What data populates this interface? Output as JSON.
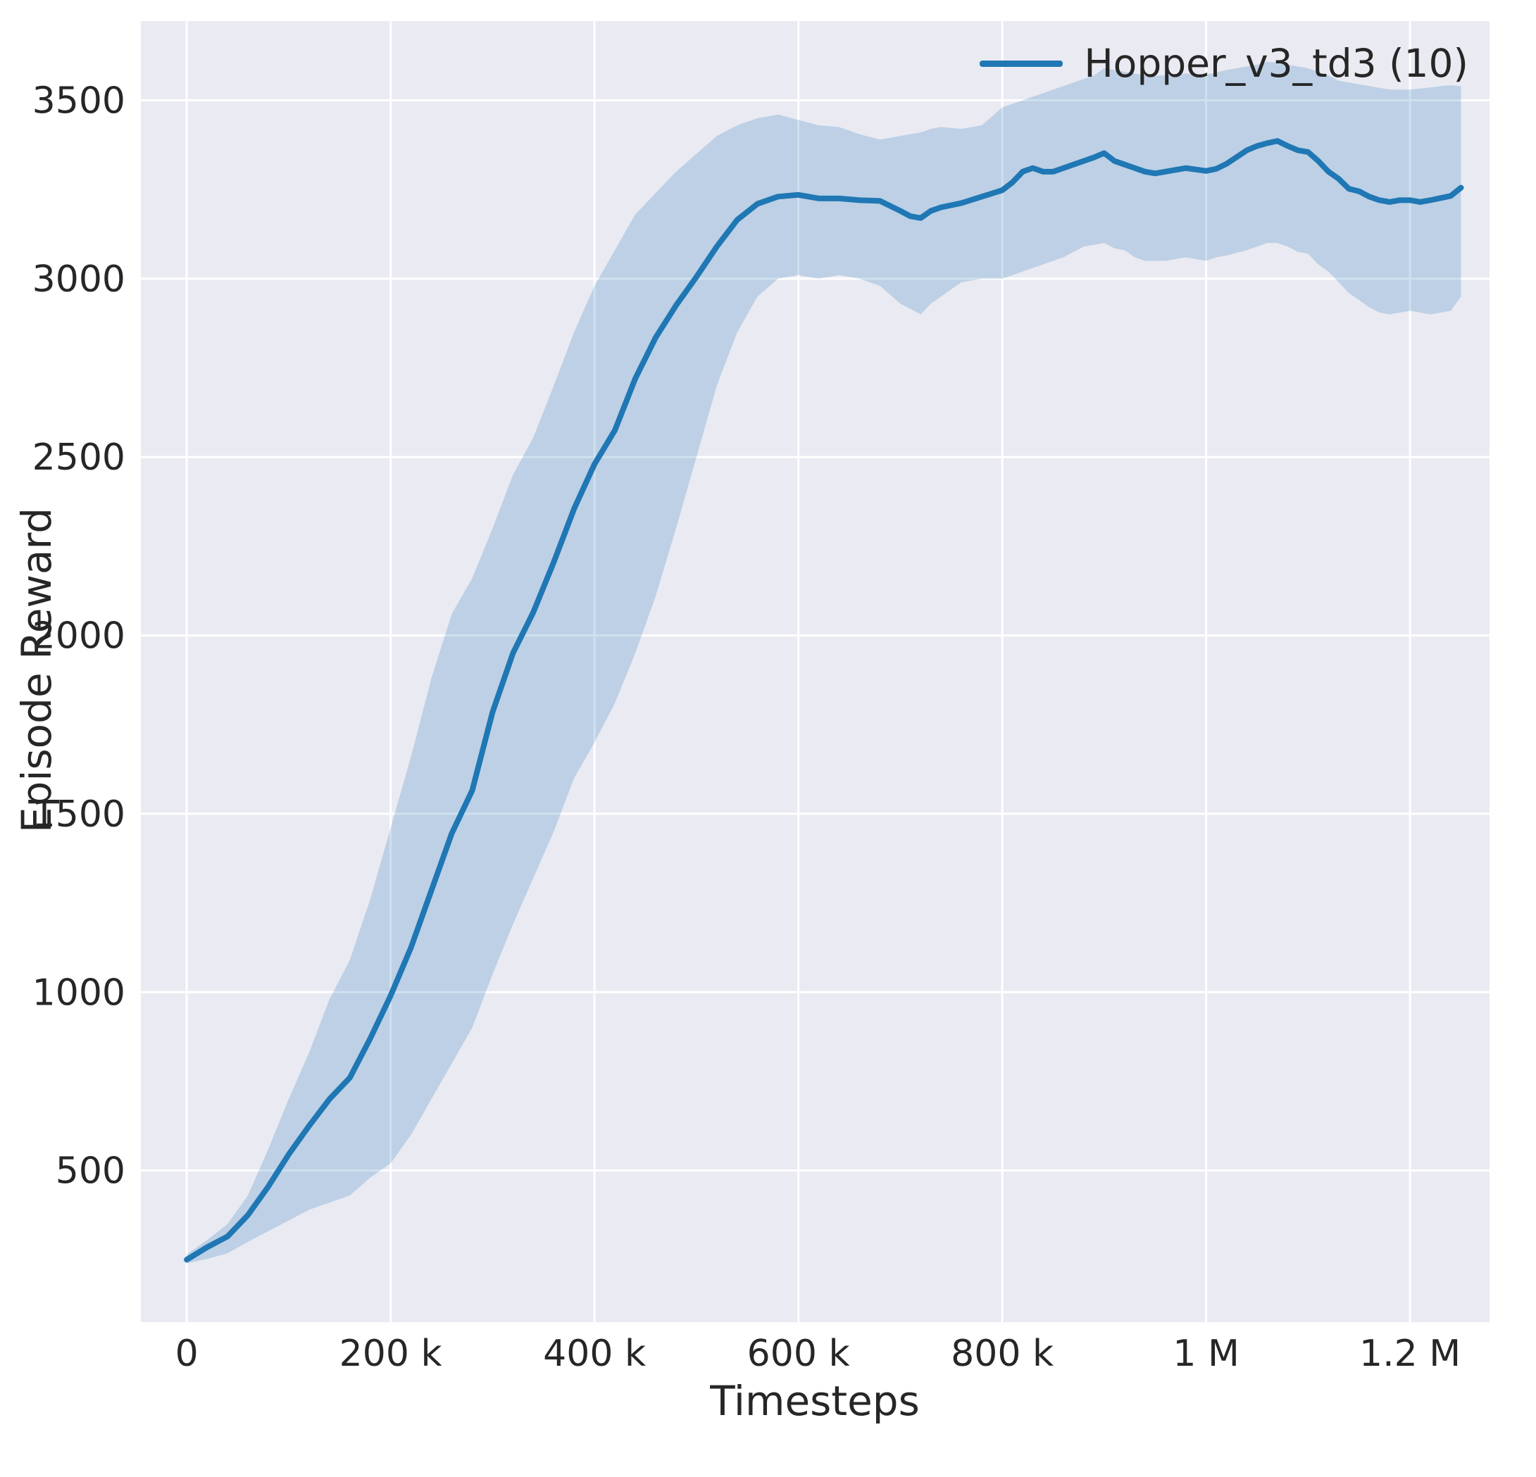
{
  "figure": {
    "background": "#ffffff",
    "plot_background": "#eaeaf2",
    "grid_color": "#ffffff",
    "text_color": "#262626"
  },
  "chart_data": {
    "type": "line",
    "title": "",
    "xlabel": "Timesteps",
    "ylabel": "Episode Reward",
    "legend": {
      "label": "Hopper_v3_td3 (10)",
      "position": "upper right"
    },
    "line_color": "#1f77b4",
    "band_color": "#1f77b4",
    "band_opacity": 0.22,
    "grid": true,
    "xlim": [
      -45000,
      1278000
    ],
    "ylim": [
      75,
      3722
    ],
    "x_ticks": [
      {
        "value": 0,
        "label": "0"
      },
      {
        "value": 200000,
        "label": "200 k"
      },
      {
        "value": 400000,
        "label": "400 k"
      },
      {
        "value": 600000,
        "label": "600 k"
      },
      {
        "value": 800000,
        "label": "800 k"
      },
      {
        "value": 1000000,
        "label": "1 M"
      },
      {
        "value": 1200000,
        "label": "1.2 M"
      }
    ],
    "y_ticks": [
      {
        "value": 500,
        "label": "500"
      },
      {
        "value": 1000,
        "label": "1000"
      },
      {
        "value": 1500,
        "label": "1500"
      },
      {
        "value": 2000,
        "label": "2000"
      },
      {
        "value": 2500,
        "label": "2500"
      },
      {
        "value": 3000,
        "label": "3000"
      },
      {
        "value": 3500,
        "label": "3500"
      }
    ],
    "series": [
      {
        "name": "Hopper_v3_td3 (10)",
        "x": [
          0,
          20000,
          40000,
          60000,
          80000,
          100000,
          120000,
          140000,
          160000,
          180000,
          200000,
          220000,
          240000,
          260000,
          280000,
          300000,
          320000,
          340000,
          360000,
          380000,
          400000,
          420000,
          440000,
          460000,
          480000,
          500000,
          520000,
          540000,
          560000,
          580000,
          600000,
          620000,
          640000,
          660000,
          680000,
          700000,
          710000,
          720000,
          730000,
          740000,
          760000,
          780000,
          800000,
          810000,
          820000,
          830000,
          840000,
          850000,
          860000,
          880000,
          890000,
          900000,
          910000,
          920000,
          930000,
          940000,
          950000,
          960000,
          980000,
          1000000,
          1010000,
          1020000,
          1040000,
          1050000,
          1060000,
          1070000,
          1080000,
          1090000,
          1100000,
          1110000,
          1120000,
          1130000,
          1140000,
          1150000,
          1160000,
          1170000,
          1180000,
          1190000,
          1200000,
          1210000,
          1220000,
          1230000,
          1240000,
          1250000
        ],
        "mean": [
          250,
          285,
          315,
          375,
          455,
          545,
          625,
          700,
          760,
          870,
          990,
          1125,
          1285,
          1445,
          1565,
          1785,
          1950,
          2065,
          2205,
          2355,
          2480,
          2575,
          2720,
          2835,
          2925,
          3005,
          3090,
          3165,
          3210,
          3230,
          3235,
          3225,
          3225,
          3220,
          3218,
          3190,
          3175,
          3170,
          3190,
          3200,
          3212,
          3230,
          3248,
          3270,
          3300,
          3310,
          3300,
          3300,
          3310,
          3330,
          3340,
          3352,
          3330,
          3320,
          3310,
          3300,
          3295,
          3300,
          3310,
          3302,
          3308,
          3322,
          3360,
          3372,
          3380,
          3386,
          3372,
          3360,
          3355,
          3330,
          3300,
          3280,
          3252,
          3245,
          3230,
          3220,
          3215,
          3220,
          3220,
          3215,
          3220,
          3226,
          3232,
          3255
        ],
        "lower": [
          240,
          252,
          268,
          300,
          330,
          360,
          390,
          410,
          430,
          480,
          520,
          600,
          700,
          800,
          900,
          1050,
          1190,
          1320,
          1450,
          1600,
          1700,
          1810,
          1950,
          2110,
          2300,
          2500,
          2700,
          2850,
          2950,
          3000,
          3010,
          3000,
          3010,
          3000,
          2980,
          2930,
          2915,
          2900,
          2930,
          2950,
          2990,
          3000,
          3000,
          3010,
          3020,
          3030,
          3040,
          3050,
          3060,
          3090,
          3095,
          3100,
          3085,
          3080,
          3060,
          3050,
          3050,
          3050,
          3060,
          3050,
          3060,
          3065,
          3080,
          3090,
          3100,
          3100,
          3090,
          3075,
          3070,
          3040,
          3020,
          2990,
          2960,
          2940,
          2920,
          2905,
          2900,
          2905,
          2910,
          2905,
          2900,
          2905,
          2910,
          2950
        ],
        "upper": [
          265,
          305,
          350,
          430,
          560,
          700,
          830,
          980,
          1090,
          1260,
          1460,
          1660,
          1880,
          2060,
          2160,
          2300,
          2450,
          2555,
          2700,
          2850,
          2980,
          3080,
          3180,
          3240,
          3300,
          3350,
          3400,
          3430,
          3450,
          3460,
          3445,
          3430,
          3425,
          3405,
          3390,
          3400,
          3405,
          3410,
          3420,
          3425,
          3420,
          3430,
          3480,
          3490,
          3500,
          3510,
          3520,
          3530,
          3540,
          3560,
          3570,
          3590,
          3585,
          3580,
          3575,
          3570,
          3568,
          3570,
          3575,
          3572,
          3578,
          3585,
          3595,
          3600,
          3608,
          3605,
          3600,
          3595,
          3590,
          3580,
          3570,
          3555,
          3550,
          3545,
          3540,
          3535,
          3530,
          3530,
          3530,
          3533,
          3536,
          3540,
          3542,
          3540
        ]
      }
    ]
  }
}
